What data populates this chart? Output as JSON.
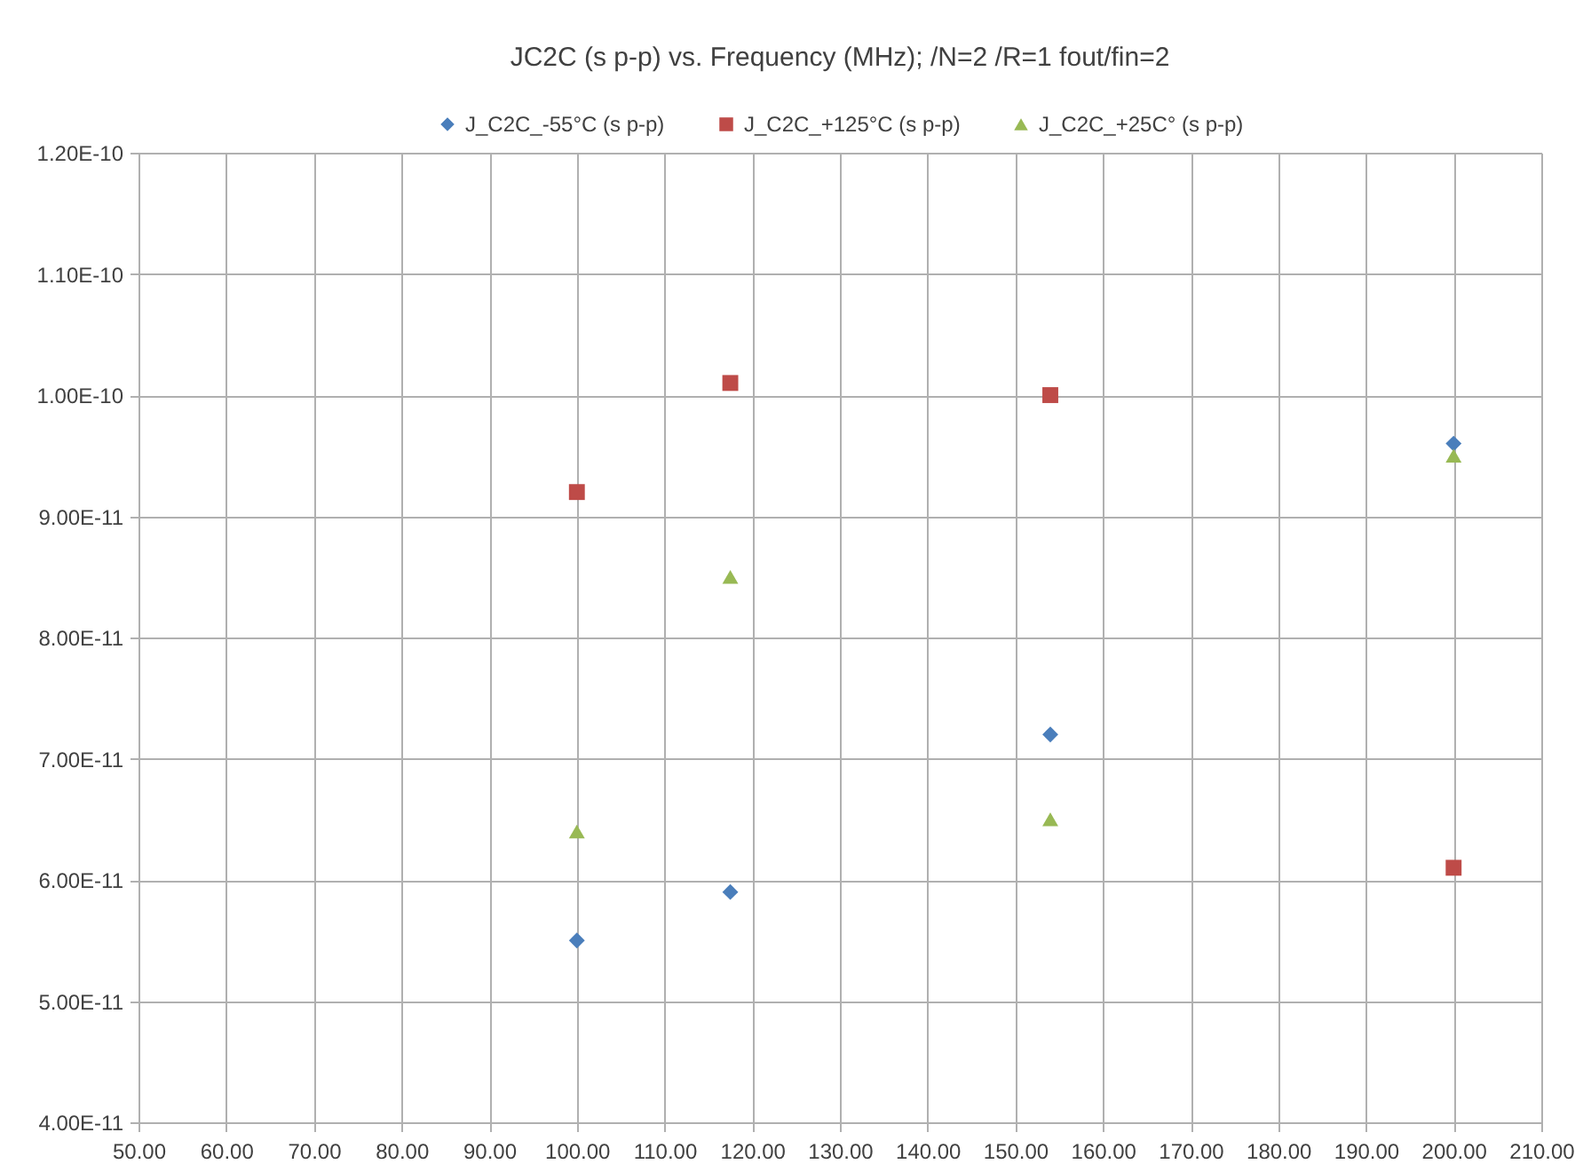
{
  "chart_data": {
    "type": "scatter",
    "title": "JC2C (s p-p) vs. Frequency (MHz);  /N=2  /R=1  fout/fin=2",
    "x": [
      100,
      117.5,
      154,
      200
    ],
    "series": [
      {
        "name": "J_C2C_-55°C (s p-p)",
        "color": "#4a7ebb",
        "marker": "diamond",
        "values": [
          5.5e-11,
          5.9e-11,
          7.2e-11,
          9.6e-11
        ]
      },
      {
        "name": "J_C2C_+125°C (s p-p)",
        "color": "#be4b48",
        "marker": "square",
        "values": [
          9.2e-11,
          1.01e-10,
          1e-10,
          6.1e-11
        ]
      },
      {
        "name": "J_C2C_+25C° (s p-p)",
        "color": "#98b954",
        "marker": "triangle",
        "values": [
          6.4e-11,
          8.5e-11,
          6.5e-11,
          9.5e-11
        ]
      }
    ],
    "xlim": [
      50,
      210
    ],
    "xticks": [
      {
        "value": 50,
        "label": "50.00"
      },
      {
        "value": 60,
        "label": "60.00"
      },
      {
        "value": 70,
        "label": "70.00"
      },
      {
        "value": 80,
        "label": "80.00"
      },
      {
        "value": 90,
        "label": "90.00"
      },
      {
        "value": 100,
        "label": "100.00"
      },
      {
        "value": 110,
        "label": "110.00"
      },
      {
        "value": 120,
        "label": "120.00"
      },
      {
        "value": 130,
        "label": "130.00"
      },
      {
        "value": 140,
        "label": "140.00"
      },
      {
        "value": 150,
        "label": "150.00"
      },
      {
        "value": 160,
        "label": "160.00"
      },
      {
        "value": 170,
        "label": "170.00"
      },
      {
        "value": 180,
        "label": "180.00"
      },
      {
        "value": 190,
        "label": "190.00"
      },
      {
        "value": 200,
        "label": "200.00"
      },
      {
        "value": 210,
        "label": "210.00"
      }
    ],
    "ylim": [
      4e-11,
      1.2e-10
    ],
    "yticks": [
      {
        "value": 4e-11,
        "label": "4.00E-11"
      },
      {
        "value": 5e-11,
        "label": "5.00E-11"
      },
      {
        "value": 6e-11,
        "label": "6.00E-11"
      },
      {
        "value": 7e-11,
        "label": "7.00E-11"
      },
      {
        "value": 8e-11,
        "label": "8.00E-11"
      },
      {
        "value": 9e-11,
        "label": "9.00E-11"
      },
      {
        "value": 1e-10,
        "label": "1.00E-10"
      },
      {
        "value": 1.1e-10,
        "label": "1.10E-10"
      },
      {
        "value": 1.2e-10,
        "label": "1.20E-10"
      }
    ],
    "grid": true,
    "legend": "top"
  }
}
